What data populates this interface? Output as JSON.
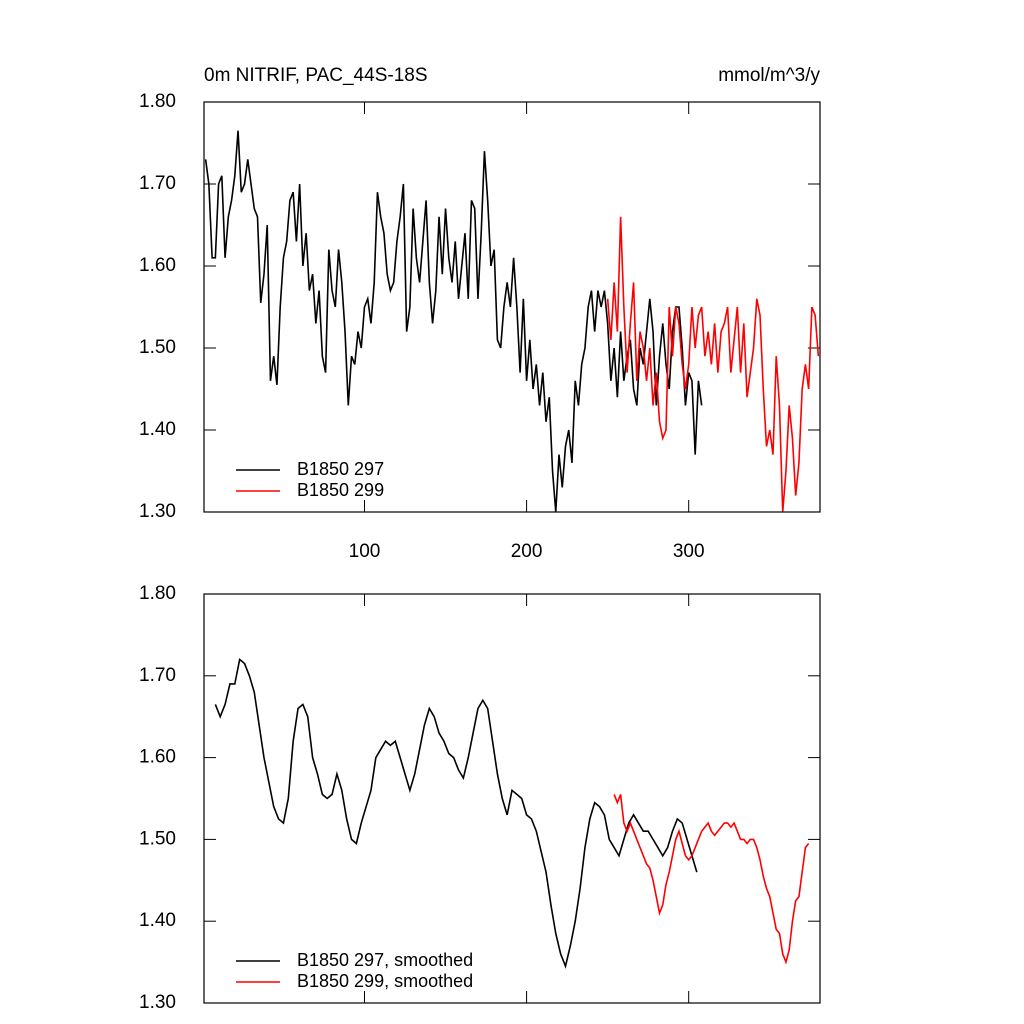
{
  "chart_data": [
    {
      "type": "line",
      "title": "0m NITRIF, PAC_44S-18S",
      "subtitle": "mmol/m^3/y",
      "xlim": [
        1,
        381
      ],
      "xticks": [
        100,
        200,
        300
      ],
      "xtick_labels": true,
      "ylim": [
        1.3,
        1.8
      ],
      "yticks": [
        {
          "value": 1.3,
          "label": "1.30"
        },
        {
          "value": 1.4,
          "label": "1.40"
        },
        {
          "value": 1.5,
          "label": "1.50"
        },
        {
          "value": 1.6,
          "label": "1.60"
        },
        {
          "value": 1.7,
          "label": "1.70"
        },
        {
          "value": 1.8,
          "label": "1.80"
        }
      ],
      "legend": "lower left",
      "series": [
        {
          "name": "B1850 297",
          "color": "#000000",
          "x": [
            2,
            4,
            6,
            8,
            10,
            12,
            14,
            16,
            18,
            20,
            22,
            24,
            26,
            28,
            30,
            32,
            34,
            36,
            38,
            40,
            42,
            44,
            46,
            48,
            50,
            52,
            54,
            56,
            58,
            60,
            62,
            64,
            66,
            68,
            70,
            72,
            74,
            76,
            78,
            80,
            82,
            84,
            86,
            88,
            90,
            92,
            94,
            96,
            98,
            100,
            102,
            104,
            106,
            108,
            110,
            112,
            114,
            116,
            118,
            120,
            122,
            124,
            126,
            128,
            130,
            132,
            134,
            136,
            138,
            140,
            142,
            144,
            146,
            148,
            150,
            152,
            154,
            156,
            158,
            160,
            162,
            164,
            166,
            168,
            170,
            172,
            174,
            176,
            178,
            180,
            182,
            184,
            186,
            188,
            190,
            192,
            194,
            196,
            198,
            200,
            202,
            204,
            206,
            208,
            210,
            212,
            214,
            216,
            218,
            220,
            222,
            224,
            226,
            228,
            230,
            232,
            234,
            236,
            238,
            240,
            242,
            244,
            246,
            248,
            250,
            252,
            254,
            256,
            258,
            260,
            262,
            264,
            266,
            268,
            270,
            272,
            274,
            276,
            278,
            280,
            282,
            284,
            286,
            288,
            290,
            292,
            294,
            296,
            298,
            300,
            302,
            304,
            306,
            308
          ],
          "values": [
            1.73,
            1.7,
            1.61,
            1.61,
            1.7,
            1.71,
            1.61,
            1.66,
            1.68,
            1.71,
            1.765,
            1.69,
            1.7,
            1.73,
            1.7,
            1.67,
            1.66,
            1.555,
            1.59,
            1.65,
            1.46,
            1.49,
            1.455,
            1.55,
            1.61,
            1.63,
            1.68,
            1.69,
            1.63,
            1.7,
            1.6,
            1.64,
            1.57,
            1.59,
            1.53,
            1.57,
            1.49,
            1.47,
            1.62,
            1.57,
            1.55,
            1.62,
            1.58,
            1.52,
            1.43,
            1.49,
            1.48,
            1.52,
            1.5,
            1.55,
            1.56,
            1.53,
            1.58,
            1.69,
            1.66,
            1.64,
            1.59,
            1.57,
            1.58,
            1.63,
            1.66,
            1.7,
            1.52,
            1.55,
            1.67,
            1.61,
            1.58,
            1.63,
            1.68,
            1.58,
            1.53,
            1.57,
            1.66,
            1.59,
            1.67,
            1.61,
            1.58,
            1.63,
            1.56,
            1.6,
            1.64,
            1.56,
            1.68,
            1.67,
            1.56,
            1.64,
            1.74,
            1.68,
            1.6,
            1.62,
            1.51,
            1.5,
            1.55,
            1.58,
            1.55,
            1.61,
            1.55,
            1.47,
            1.56,
            1.46,
            1.51,
            1.45,
            1.48,
            1.43,
            1.47,
            1.41,
            1.44,
            1.35,
            1.3,
            1.37,
            1.33,
            1.38,
            1.4,
            1.36,
            1.46,
            1.43,
            1.48,
            1.5,
            1.55,
            1.57,
            1.52,
            1.57,
            1.55,
            1.57,
            1.53,
            1.46,
            1.5,
            1.44,
            1.52,
            1.46,
            1.49,
            1.51,
            1.45,
            1.43,
            1.5,
            1.48,
            1.52,
            1.56,
            1.52,
            1.43,
            1.49,
            1.53,
            1.48,
            1.45,
            1.52,
            1.55,
            1.55,
            1.5,
            1.43,
            1.47,
            1.46,
            1.37,
            1.46,
            1.43
          ]
        },
        {
          "name": "B1850 299",
          "color": "#ff0000",
          "x": [
            250,
            252,
            254,
            256,
            258,
            260,
            262,
            264,
            266,
            268,
            270,
            272,
            274,
            276,
            278,
            280,
            282,
            284,
            286,
            288,
            290,
            292,
            294,
            296,
            298,
            300,
            302,
            304,
            306,
            308,
            310,
            312,
            314,
            316,
            318,
            320,
            322,
            324,
            326,
            328,
            330,
            332,
            334,
            336,
            338,
            340,
            342,
            344,
            346,
            348,
            350,
            352,
            354,
            356,
            358,
            360,
            362,
            364,
            366,
            368,
            370,
            372,
            374,
            376,
            378,
            380
          ],
          "values": [
            1.56,
            1.51,
            1.58,
            1.52,
            1.66,
            1.55,
            1.47,
            1.53,
            1.58,
            1.46,
            1.52,
            1.5,
            1.46,
            1.5,
            1.43,
            1.47,
            1.41,
            1.39,
            1.4,
            1.55,
            1.49,
            1.55,
            1.53,
            1.48,
            1.45,
            1.48,
            1.55,
            1.5,
            1.54,
            1.55,
            1.49,
            1.52,
            1.48,
            1.53,
            1.47,
            1.52,
            1.53,
            1.55,
            1.47,
            1.51,
            1.55,
            1.47,
            1.53,
            1.44,
            1.47,
            1.5,
            1.56,
            1.54,
            1.45,
            1.38,
            1.4,
            1.37,
            1.49,
            1.43,
            1.3,
            1.35,
            1.43,
            1.39,
            1.32,
            1.36,
            1.45,
            1.48,
            1.45,
            1.55,
            1.54,
            1.49
          ]
        }
      ]
    },
    {
      "type": "line",
      "xlim": [
        1,
        381
      ],
      "xticks": [
        100,
        200,
        300
      ],
      "xtick_labels": false,
      "ylim": [
        1.3,
        1.8
      ],
      "yticks": [
        {
          "value": 1.3,
          "label": "1.30"
        },
        {
          "value": 1.4,
          "label": "1.40"
        },
        {
          "value": 1.5,
          "label": "1.50"
        },
        {
          "value": 1.6,
          "label": "1.60"
        },
        {
          "value": 1.7,
          "label": "1.70"
        },
        {
          "value": 1.8,
          "label": "1.80"
        }
      ],
      "legend": "lower left",
      "series": [
        {
          "name": "B1850 297, smoothed",
          "color": "#000000",
          "x": [
            8,
            11,
            14,
            17,
            20,
            23,
            26,
            29,
            32,
            35,
            38,
            41,
            44,
            47,
            50,
            53,
            56,
            59,
            62,
            65,
            68,
            71,
            74,
            77,
            80,
            83,
            86,
            89,
            92,
            95,
            98,
            101,
            104,
            107,
            110,
            113,
            116,
            119,
            122,
            125,
            128,
            131,
            134,
            137,
            140,
            143,
            146,
            149,
            152,
            155,
            158,
            161,
            164,
            167,
            170,
            173,
            176,
            179,
            182,
            185,
            188,
            191,
            194,
            197,
            200,
            203,
            206,
            209,
            212,
            215,
            218,
            221,
            224,
            227,
            230,
            233,
            236,
            239,
            242,
            245,
            248,
            251,
            254,
            257,
            260,
            263,
            266,
            269,
            272,
            275,
            278,
            281,
            284,
            287,
            290,
            293,
            296,
            299,
            302,
            305
          ],
          "values": [
            1.665,
            1.65,
            1.665,
            1.69,
            1.69,
            1.72,
            1.715,
            1.7,
            1.68,
            1.64,
            1.6,
            1.57,
            1.54,
            1.525,
            1.52,
            1.55,
            1.62,
            1.66,
            1.665,
            1.65,
            1.6,
            1.58,
            1.555,
            1.55,
            1.555,
            1.58,
            1.56,
            1.525,
            1.5,
            1.495,
            1.52,
            1.54,
            1.56,
            1.6,
            1.61,
            1.62,
            1.615,
            1.62,
            1.6,
            1.58,
            1.56,
            1.58,
            1.61,
            1.64,
            1.66,
            1.65,
            1.63,
            1.62,
            1.605,
            1.6,
            1.585,
            1.575,
            1.6,
            1.63,
            1.66,
            1.67,
            1.66,
            1.62,
            1.58,
            1.55,
            1.53,
            1.56,
            1.555,
            1.55,
            1.53,
            1.525,
            1.51,
            1.485,
            1.46,
            1.42,
            1.385,
            1.36,
            1.345,
            1.37,
            1.4,
            1.44,
            1.49,
            1.525,
            1.545,
            1.54,
            1.53,
            1.5,
            1.49,
            1.48,
            1.5,
            1.52,
            1.53,
            1.52,
            1.51,
            1.51,
            1.5,
            1.49,
            1.48,
            1.49,
            1.51,
            1.525,
            1.52,
            1.5,
            1.48,
            1.46
          ]
        },
        {
          "name": "B1850 299, smoothed",
          "color": "#ff0000",
          "x": [
            254,
            256,
            258,
            260,
            262,
            264,
            266,
            268,
            270,
            272,
            274,
            276,
            278,
            280,
            282,
            284,
            286,
            288,
            290,
            292,
            294,
            296,
            298,
            300,
            302,
            304,
            306,
            308,
            310,
            312,
            314,
            316,
            318,
            320,
            322,
            324,
            326,
            328,
            330,
            332,
            334,
            336,
            338,
            340,
            342,
            344,
            346,
            348,
            350,
            352,
            354,
            356,
            358,
            360,
            362,
            364,
            366,
            368,
            370,
            372,
            374
          ],
          "values": [
            1.555,
            1.545,
            1.555,
            1.52,
            1.51,
            1.52,
            1.51,
            1.5,
            1.49,
            1.48,
            1.47,
            1.465,
            1.45,
            1.43,
            1.41,
            1.42,
            1.445,
            1.46,
            1.48,
            1.5,
            1.51,
            1.495,
            1.48,
            1.475,
            1.48,
            1.49,
            1.5,
            1.51,
            1.515,
            1.52,
            1.51,
            1.505,
            1.51,
            1.515,
            1.52,
            1.52,
            1.515,
            1.52,
            1.51,
            1.5,
            1.5,
            1.495,
            1.5,
            1.5,
            1.49,
            1.475,
            1.455,
            1.44,
            1.43,
            1.41,
            1.39,
            1.385,
            1.36,
            1.35,
            1.365,
            1.4,
            1.425,
            1.43,
            1.46,
            1.49,
            1.495
          ]
        }
      ]
    }
  ]
}
